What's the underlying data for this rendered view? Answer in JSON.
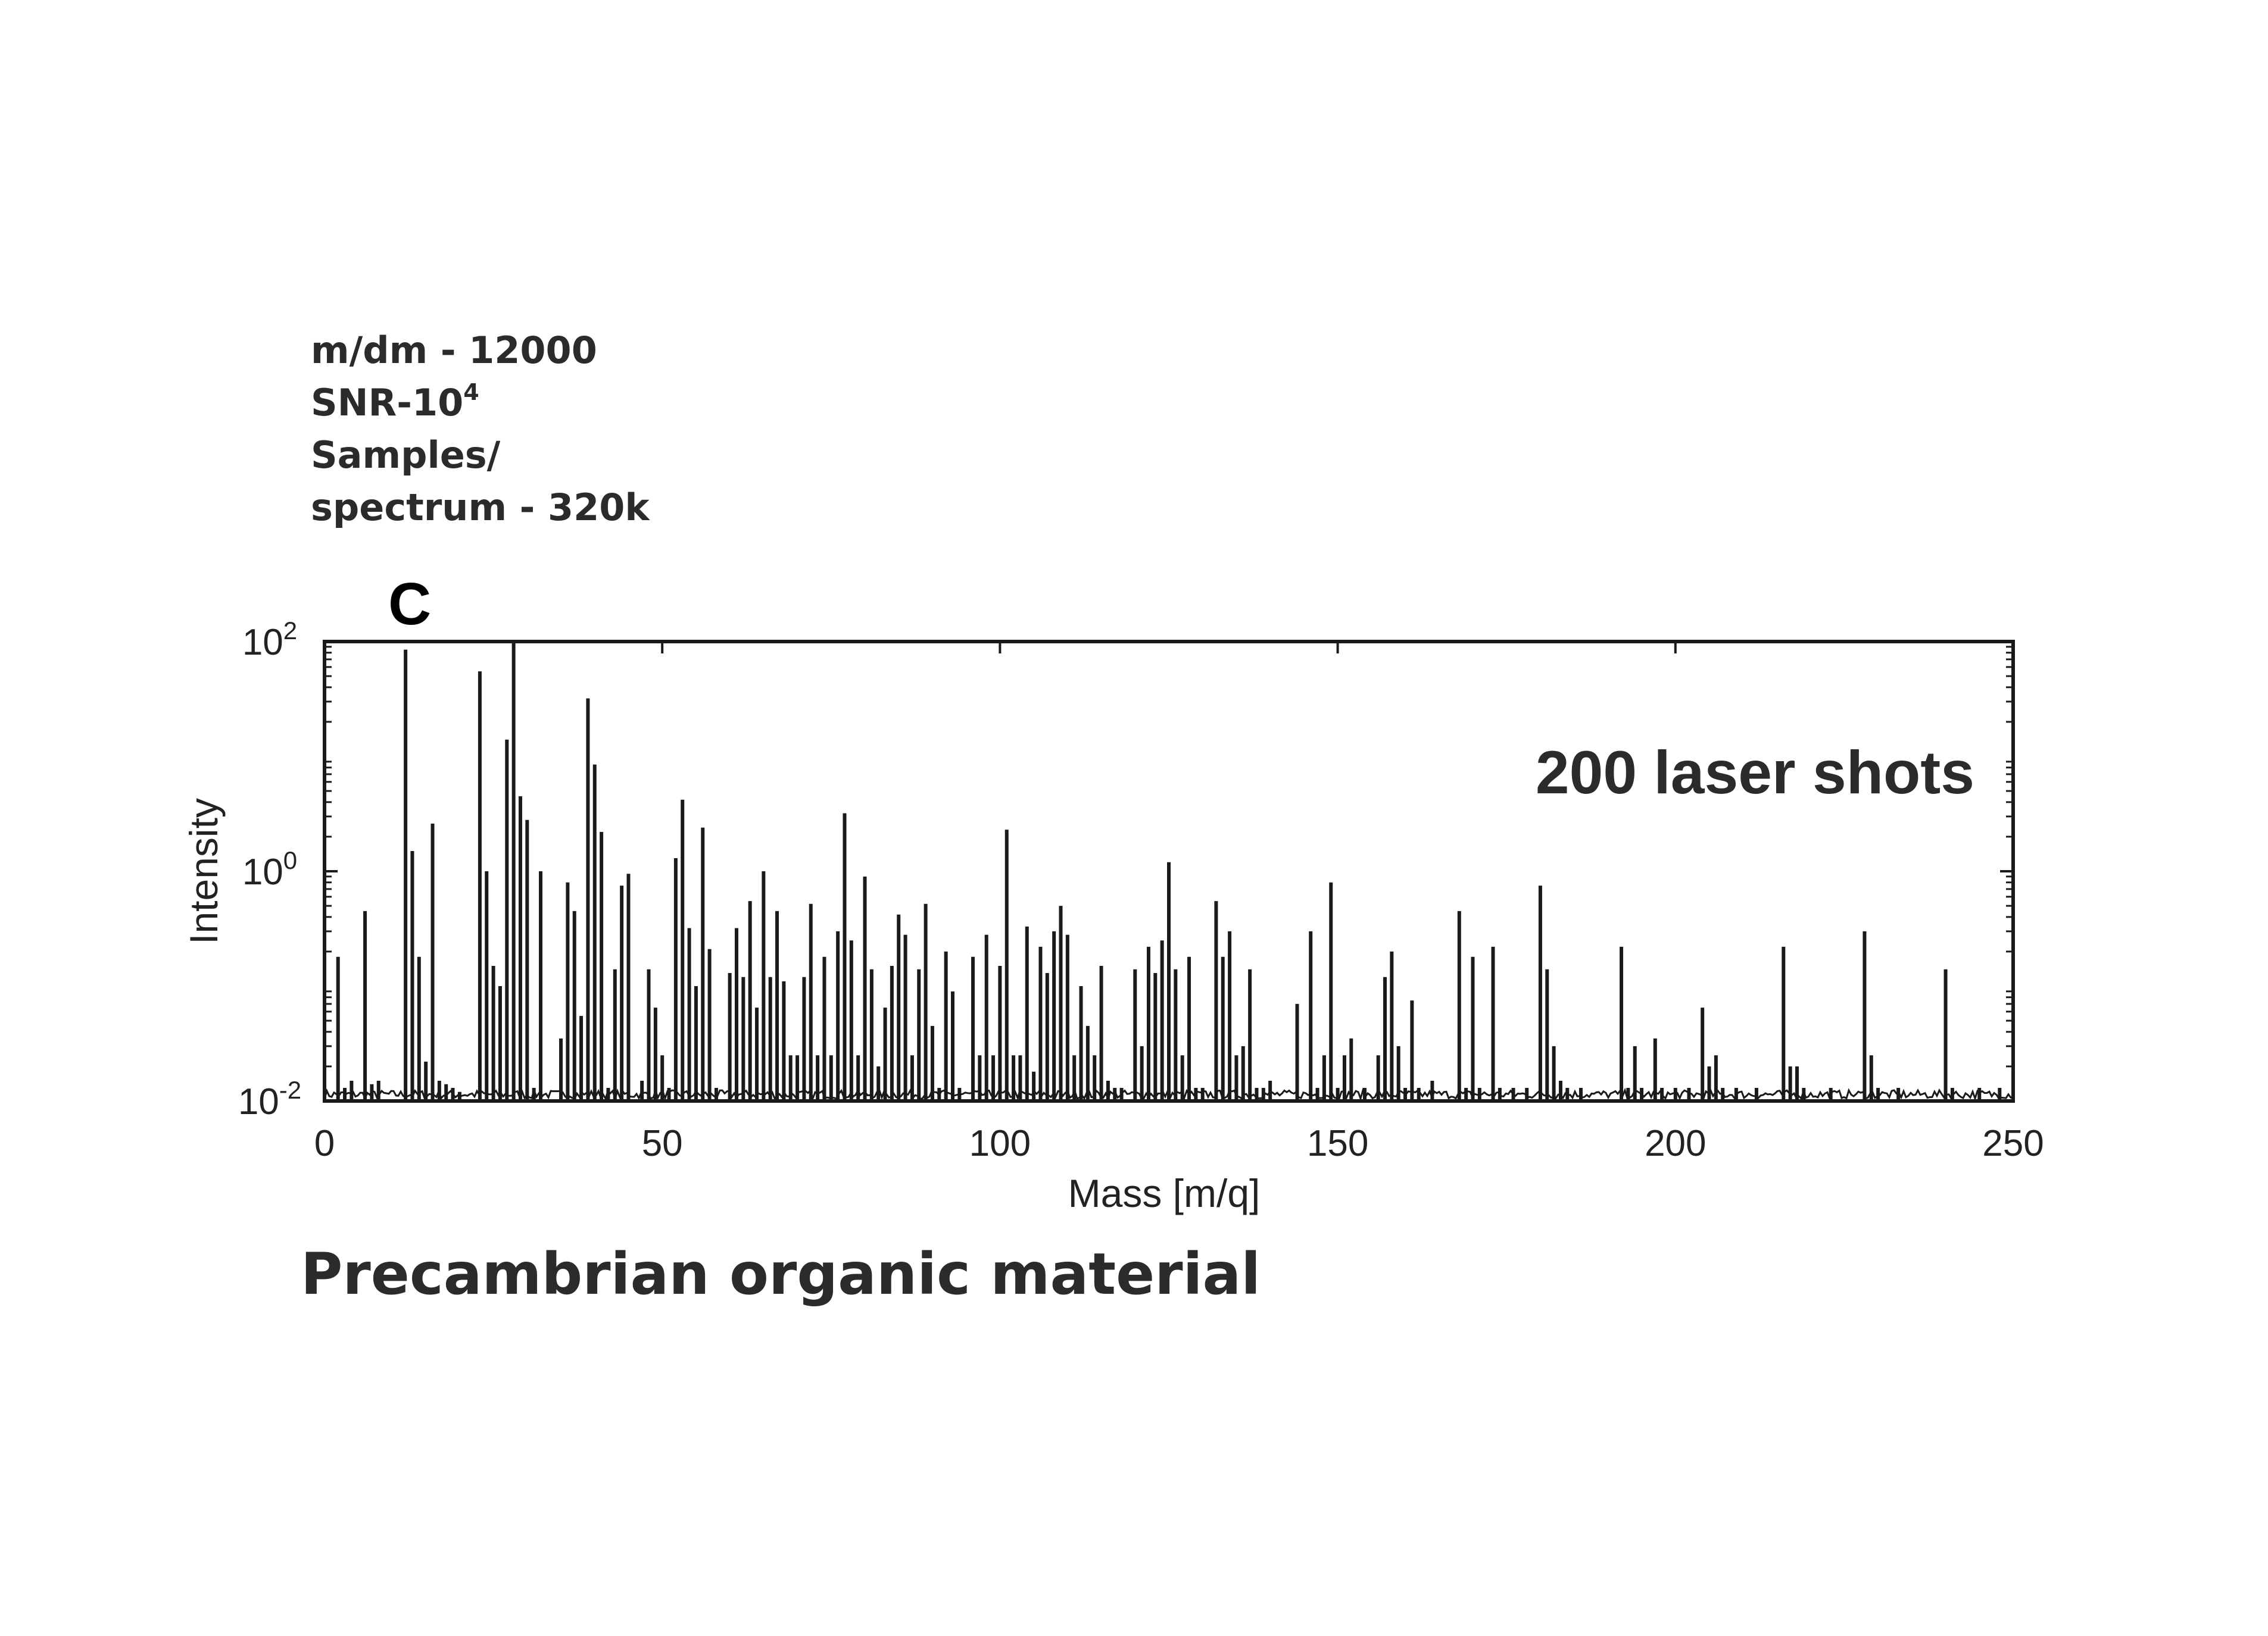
{
  "specs": {
    "resolution": "m/dm - 12000",
    "snr_base": "SNR-10",
    "snr_exp": "4",
    "samples_line1": "Samples/",
    "samples_line2": "spectrum - 320k"
  },
  "caption": "Precambrian organic material",
  "chart_data": {
    "type": "line",
    "panel_label": "C",
    "annotation": "200 laser shots",
    "xlabel": "Mass [m/q]",
    "ylabel": "Intensity",
    "xlim": [
      0,
      250
    ],
    "ylim": [
      0.01,
      100
    ],
    "yscale": "log",
    "x_ticks": [
      0,
      50,
      100,
      150,
      200,
      250
    ],
    "y_ticks": [
      {
        "base": "10",
        "exp": "-2",
        "value": 0.01
      },
      {
        "base": "10",
        "exp": "0",
        "value": 1
      },
      {
        "base": "10",
        "exp": "2",
        "value": 100
      }
    ],
    "baseline": 0.011,
    "peaks": [
      [
        2,
        0.18
      ],
      [
        3,
        0.013
      ],
      [
        4,
        0.015
      ],
      [
        6,
        0.45
      ],
      [
        7,
        0.014
      ],
      [
        8,
        0.015
      ],
      [
        12,
        85
      ],
      [
        13,
        1.5
      ],
      [
        14,
        0.18
      ],
      [
        15,
        0.022
      ],
      [
        16,
        2.6
      ],
      [
        17,
        0.015
      ],
      [
        18,
        0.014
      ],
      [
        19,
        0.013
      ],
      [
        20,
        0.012
      ],
      [
        23,
        55
      ],
      [
        24,
        1.0
      ],
      [
        25,
        0.15
      ],
      [
        26,
        0.1
      ],
      [
        27,
        14
      ],
      [
        28,
        100
      ],
      [
        29,
        4.5
      ],
      [
        30,
        2.8
      ],
      [
        31,
        0.013
      ],
      [
        32,
        1.0
      ],
      [
        35,
        0.035
      ],
      [
        36,
        0.8
      ],
      [
        37,
        0.45
      ],
      [
        38,
        0.055
      ],
      [
        39,
        32
      ],
      [
        40,
        8.5
      ],
      [
        41,
        2.2
      ],
      [
        42,
        0.013
      ],
      [
        43,
        0.14
      ],
      [
        44,
        0.75
      ],
      [
        45,
        0.95
      ],
      [
        47,
        0.015
      ],
      [
        48,
        0.14
      ],
      [
        49,
        0.065
      ],
      [
        50,
        0.025
      ],
      [
        51,
        0.013
      ],
      [
        52,
        1.3
      ],
      [
        53,
        4.2
      ],
      [
        54,
        0.32
      ],
      [
        55,
        0.1
      ],
      [
        56,
        2.4
      ],
      [
        57,
        0.21
      ],
      [
        58,
        0.013
      ],
      [
        60,
        0.13
      ],
      [
        61,
        0.32
      ],
      [
        62,
        0.12
      ],
      [
        63,
        0.55
      ],
      [
        64,
        0.065
      ],
      [
        65,
        1.0
      ],
      [
        66,
        0.12
      ],
      [
        67,
        0.45
      ],
      [
        68,
        0.11
      ],
      [
        69,
        0.025
      ],
      [
        70,
        0.025
      ],
      [
        71,
        0.12
      ],
      [
        72,
        0.52
      ],
      [
        73,
        0.025
      ],
      [
        74,
        0.18
      ],
      [
        75,
        0.025
      ],
      [
        76,
        0.3
      ],
      [
        77,
        3.2
      ],
      [
        78,
        0.25
      ],
      [
        79,
        0.025
      ],
      [
        80,
        0.9
      ],
      [
        81,
        0.14
      ],
      [
        82,
        0.02
      ],
      [
        83,
        0.065
      ],
      [
        84,
        0.15
      ],
      [
        85,
        0.42
      ],
      [
        86,
        0.28
      ],
      [
        87,
        0.025
      ],
      [
        88,
        0.14
      ],
      [
        89,
        0.52
      ],
      [
        90,
        0.045
      ],
      [
        91,
        0.013
      ],
      [
        92,
        0.2
      ],
      [
        93,
        0.09
      ],
      [
        94,
        0.013
      ],
      [
        96,
        0.18
      ],
      [
        97,
        0.025
      ],
      [
        98,
        0.28
      ],
      [
        99,
        0.025
      ],
      [
        100,
        0.15
      ],
      [
        101,
        2.3
      ],
      [
        102,
        0.025
      ],
      [
        103,
        0.025
      ],
      [
        104,
        0.33
      ],
      [
        105,
        0.018
      ],
      [
        106,
        0.22
      ],
      [
        107,
        0.13
      ],
      [
        108,
        0.3
      ],
      [
        109,
        0.5
      ],
      [
        110,
        0.28
      ],
      [
        111,
        0.025
      ],
      [
        112,
        0.1
      ],
      [
        113,
        0.045
      ],
      [
        114,
        0.025
      ],
      [
        115,
        0.15
      ],
      [
        116,
        0.015
      ],
      [
        117,
        0.013
      ],
      [
        118,
        0.013
      ],
      [
        120,
        0.14
      ],
      [
        121,
        0.03
      ],
      [
        122,
        0.22
      ],
      [
        123,
        0.13
      ],
      [
        124,
        0.25
      ],
      [
        125,
        1.2
      ],
      [
        126,
        0.14
      ],
      [
        127,
        0.025
      ],
      [
        128,
        0.18
      ],
      [
        129,
        0.013
      ],
      [
        130,
        0.013
      ],
      [
        132,
        0.55
      ],
      [
        133,
        0.18
      ],
      [
        134,
        0.3
      ],
      [
        135,
        0.025
      ],
      [
        136,
        0.03
      ],
      [
        137,
        0.14
      ],
      [
        138,
        0.013
      ],
      [
        139,
        0.013
      ],
      [
        140,
        0.015
      ],
      [
        144,
        0.07
      ],
      [
        146,
        0.3
      ],
      [
        147,
        0.013
      ],
      [
        148,
        0.025
      ],
      [
        149,
        0.8
      ],
      [
        150,
        0.013
      ],
      [
        151,
        0.025
      ],
      [
        152,
        0.035
      ],
      [
        154,
        0.013
      ],
      [
        156,
        0.025
      ],
      [
        157,
        0.12
      ],
      [
        158,
        0.2
      ],
      [
        159,
        0.03
      ],
      [
        160,
        0.013
      ],
      [
        161,
        0.075
      ],
      [
        162,
        0.013
      ],
      [
        164,
        0.015
      ],
      [
        168,
        0.45
      ],
      [
        169,
        0.013
      ],
      [
        170,
        0.18
      ],
      [
        171,
        0.013
      ],
      [
        173,
        0.22
      ],
      [
        174,
        0.013
      ],
      [
        176,
        0.013
      ],
      [
        178,
        0.013
      ],
      [
        180,
        0.75
      ],
      [
        181,
        0.14
      ],
      [
        182,
        0.03
      ],
      [
        183,
        0.015
      ],
      [
        184,
        0.013
      ],
      [
        186,
        0.013
      ],
      [
        192,
        0.22
      ],
      [
        193,
        0.013
      ],
      [
        194,
        0.03
      ],
      [
        195,
        0.013
      ],
      [
        197,
        0.035
      ],
      [
        198,
        0.013
      ],
      [
        200,
        0.013
      ],
      [
        202,
        0.013
      ],
      [
        204,
        0.065
      ],
      [
        205,
        0.02
      ],
      [
        206,
        0.025
      ],
      [
        207,
        0.013
      ],
      [
        209,
        0.013
      ],
      [
        212,
        0.013
      ],
      [
        216,
        0.22
      ],
      [
        217,
        0.02
      ],
      [
        218,
        0.02
      ],
      [
        219,
        0.013
      ],
      [
        223,
        0.013
      ],
      [
        228,
        0.3
      ],
      [
        229,
        0.025
      ],
      [
        230,
        0.013
      ],
      [
        233,
        0.013
      ],
      [
        240,
        0.14
      ],
      [
        241,
        0.013
      ],
      [
        245,
        0.013
      ],
      [
        248,
        0.013
      ]
    ]
  }
}
